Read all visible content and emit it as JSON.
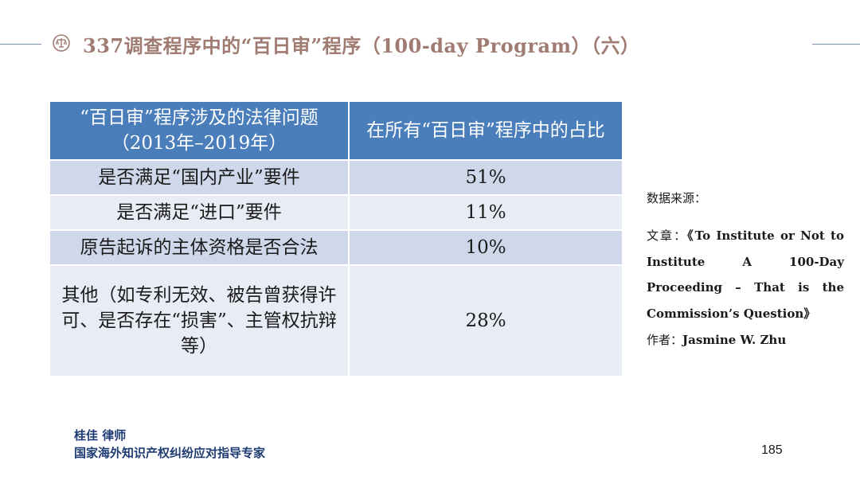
{
  "header": {
    "title": "337调查程序中的“百日审”程序（100-day Program）（六）",
    "icon": "scales-badge-icon",
    "accent_color": "#a07b72",
    "line_color": "#7a8fb4"
  },
  "table": {
    "header_bg": "#4a7ebb",
    "row_bg_odd": "#cfd8ea",
    "row_bg_even": "#e8ecf5",
    "columns": [
      "“百日审”程序涉及的法律问题（2013年–2019年）",
      "在所有“百日审”程序中的占比"
    ],
    "rows": [
      {
        "issue": "是否满足“国内产业”要件",
        "share": "51%"
      },
      {
        "issue": "是否满足“进口”要件",
        "share": "11%"
      },
      {
        "issue": "原告起诉的主体资格是否合法",
        "share": "10%"
      },
      {
        "issue": "其他（如专利无效、被告曾获得许可、是否存在“损害”、主管权抗辩等）",
        "share": "28%"
      }
    ]
  },
  "source": {
    "heading": "数据来源：",
    "article_prefix": "文章：",
    "article_title": "《To Institute or Not to Institute A 100-Day Proceeding – That is the Commission’s Question》",
    "author_prefix": "作者：",
    "author_name": "Jasmine W. Zhu"
  },
  "footer": {
    "name": "桂佳 律师",
    "role": "国家海外知识产权纠纷应对指导专家",
    "page_number": "185"
  }
}
